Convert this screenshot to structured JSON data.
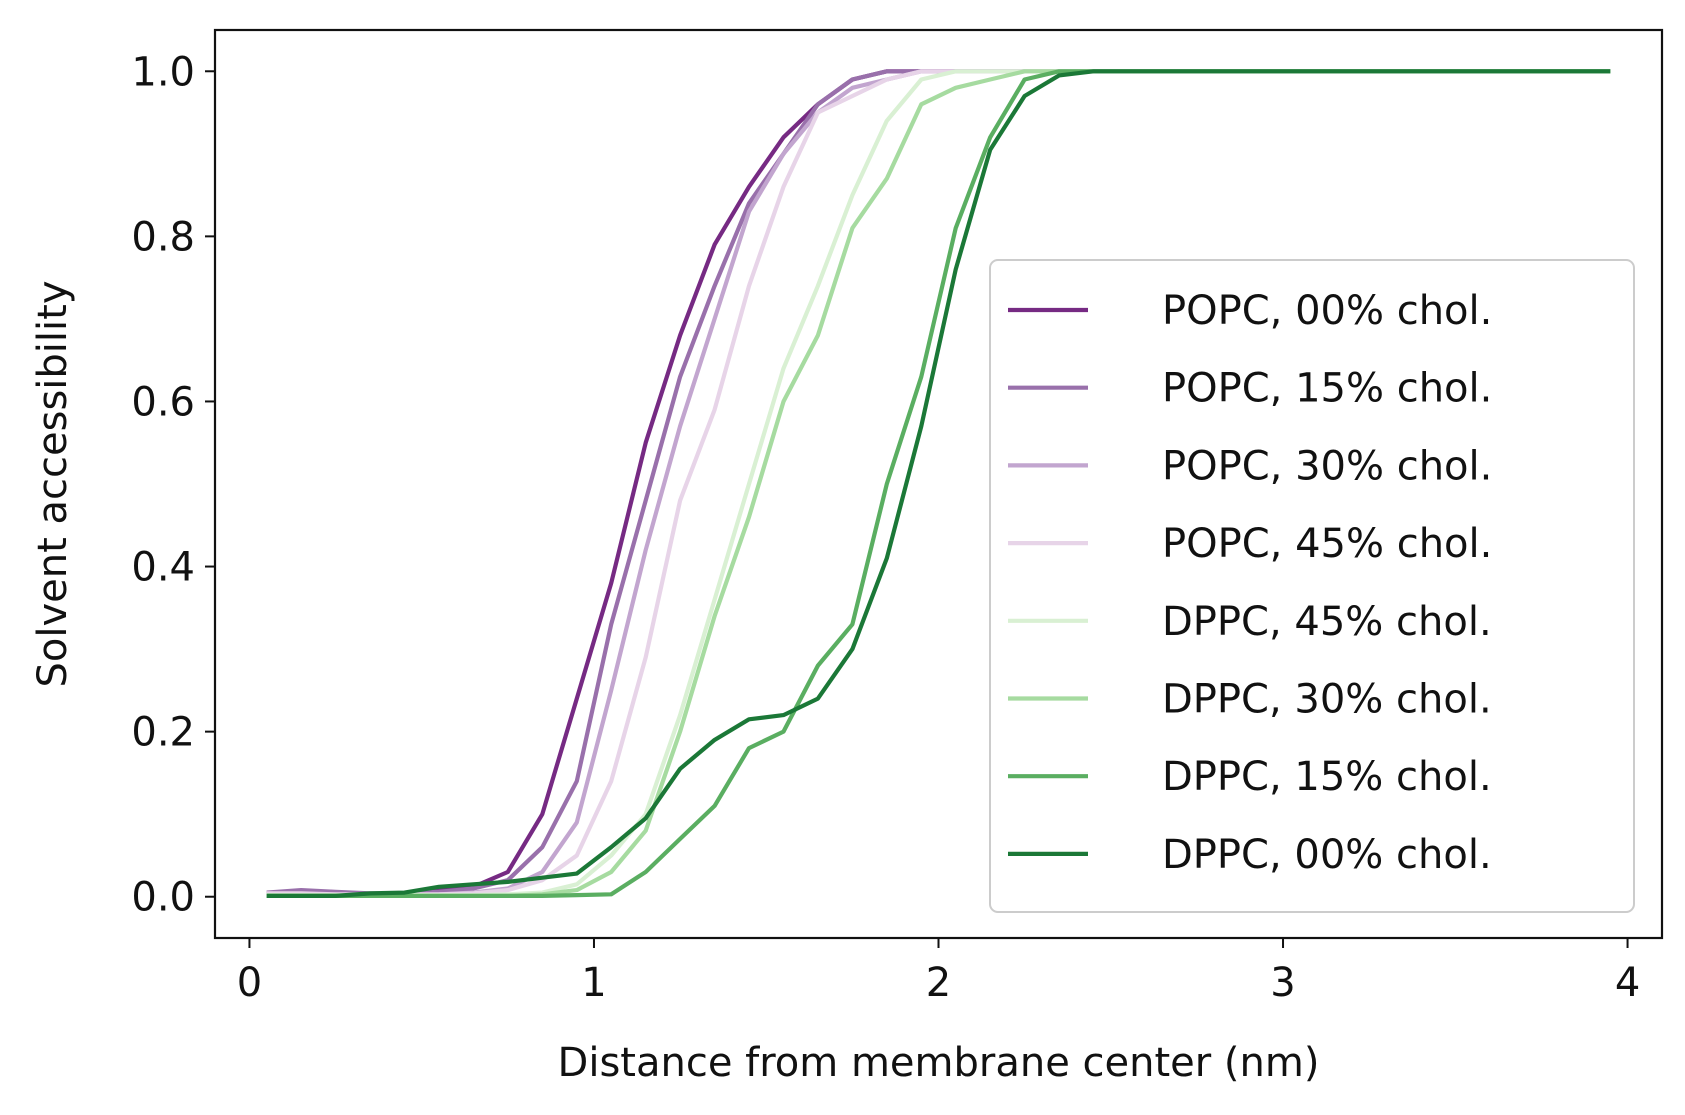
{
  "chart_data": {
    "type": "line",
    "title": "",
    "xlabel": "Distance from membrane center (nm)",
    "ylabel": "Solvent accessibility",
    "xlim": [
      -0.1,
      4.1
    ],
    "ylim": [
      -0.05,
      1.05
    ],
    "xticks": [
      0,
      1,
      2,
      3,
      4
    ],
    "xtick_labels": [
      "0",
      "1",
      "2",
      "3",
      "4"
    ],
    "yticks": [
      0.0,
      0.2,
      0.4,
      0.6,
      0.8,
      1.0
    ],
    "ytick_labels": [
      "0.0",
      "0.2",
      "0.4",
      "0.6",
      "0.8",
      "1.0"
    ],
    "grid": false,
    "legend_position": "center-right",
    "x": [
      0.05,
      0.15,
      0.25,
      0.35,
      0.45,
      0.55,
      0.65,
      0.75,
      0.85,
      0.95,
      1.05,
      1.15,
      1.25,
      1.35,
      1.45,
      1.55,
      1.65,
      1.75,
      1.85,
      1.95,
      2.05,
      2.15,
      2.25,
      2.35,
      2.45,
      2.55,
      2.65,
      2.75,
      2.85,
      2.95,
      3.05,
      3.15,
      3.25,
      3.35,
      3.45,
      3.55,
      3.65,
      3.75,
      3.85,
      3.95
    ],
    "series": [
      {
        "name": "POPC, 00% chol.",
        "color": "#762a83",
        "values": [
          0.003,
          0.003,
          0.003,
          0.003,
          0.004,
          0.008,
          0.012,
          0.03,
          0.1,
          0.24,
          0.38,
          0.55,
          0.68,
          0.79,
          0.86,
          0.92,
          0.96,
          0.99,
          1.0,
          1.0,
          1.0,
          1.0,
          1.0,
          1.0,
          1.0,
          1.0,
          1.0,
          1.0,
          1.0,
          1.0,
          1.0,
          1.0,
          1.0,
          1.0,
          1.0,
          1.0,
          1.0,
          1.0,
          1.0,
          1.0
        ]
      },
      {
        "name": "POPC, 15% chol.",
        "color": "#9970ab",
        "values": [
          0.005,
          0.008,
          0.006,
          0.004,
          0.004,
          0.006,
          0.01,
          0.02,
          0.06,
          0.14,
          0.33,
          0.48,
          0.63,
          0.74,
          0.84,
          0.9,
          0.96,
          0.99,
          1.0,
          1.0,
          1.0,
          1.0,
          1.0,
          1.0,
          1.0,
          1.0,
          1.0,
          1.0,
          1.0,
          1.0,
          1.0,
          1.0,
          1.0,
          1.0,
          1.0,
          1.0,
          1.0,
          1.0,
          1.0,
          1.0
        ]
      },
      {
        "name": "POPC, 30% chol.",
        "color": "#c2a5cf",
        "values": [
          0.002,
          0.002,
          0.002,
          0.002,
          0.002,
          0.003,
          0.005,
          0.01,
          0.03,
          0.09,
          0.25,
          0.42,
          0.57,
          0.7,
          0.83,
          0.9,
          0.95,
          0.98,
          0.99,
          1.0,
          1.0,
          1.0,
          1.0,
          1.0,
          1.0,
          1.0,
          1.0,
          1.0,
          1.0,
          1.0,
          1.0,
          1.0,
          1.0,
          1.0,
          1.0,
          1.0,
          1.0,
          1.0,
          1.0,
          1.0
        ]
      },
      {
        "name": "POPC, 45% chol.",
        "color": "#e7d4e8",
        "values": [
          0.004,
          0.004,
          0.003,
          0.003,
          0.003,
          0.003,
          0.004,
          0.008,
          0.02,
          0.05,
          0.14,
          0.29,
          0.48,
          0.59,
          0.74,
          0.86,
          0.95,
          0.97,
          0.99,
          1.0,
          1.0,
          1.0,
          1.0,
          1.0,
          1.0,
          1.0,
          1.0,
          1.0,
          1.0,
          1.0,
          1.0,
          1.0,
          1.0,
          1.0,
          1.0,
          1.0,
          1.0,
          1.0,
          1.0,
          1.0
        ]
      },
      {
        "name": "DPPC, 45% chol.",
        "color": "#d9f0d3",
        "values": [
          0.002,
          0.002,
          0.002,
          0.002,
          0.002,
          0.002,
          0.002,
          0.003,
          0.005,
          0.015,
          0.05,
          0.1,
          0.22,
          0.36,
          0.5,
          0.64,
          0.74,
          0.85,
          0.94,
          0.99,
          1.0,
          1.0,
          1.0,
          1.0,
          1.0,
          1.0,
          1.0,
          1.0,
          1.0,
          1.0,
          1.0,
          1.0,
          1.0,
          1.0,
          1.0,
          1.0,
          1.0,
          1.0,
          1.0,
          1.0
        ]
      },
      {
        "name": "DPPC, 30% chol.",
        "color": "#a6dba0",
        "values": [
          0.001,
          0.001,
          0.001,
          0.001,
          0.001,
          0.001,
          0.001,
          0.001,
          0.003,
          0.008,
          0.03,
          0.08,
          0.2,
          0.34,
          0.46,
          0.6,
          0.68,
          0.81,
          0.87,
          0.96,
          0.98,
          0.99,
          1.0,
          1.0,
          1.0,
          1.0,
          1.0,
          1.0,
          1.0,
          1.0,
          1.0,
          1.0,
          1.0,
          1.0,
          1.0,
          1.0,
          1.0,
          1.0,
          1.0,
          1.0
        ]
      },
      {
        "name": "DPPC, 15% chol.",
        "color": "#5aae61",
        "values": [
          0.001,
          0.001,
          0.001,
          0.001,
          0.001,
          0.001,
          0.001,
          0.001,
          0.001,
          0.002,
          0.003,
          0.03,
          0.07,
          0.11,
          0.18,
          0.2,
          0.28,
          0.33,
          0.5,
          0.63,
          0.81,
          0.92,
          0.99,
          1.0,
          1.0,
          1.0,
          1.0,
          1.0,
          1.0,
          1.0,
          1.0,
          1.0,
          1.0,
          1.0,
          1.0,
          1.0,
          1.0,
          1.0,
          1.0,
          1.0
        ]
      },
      {
        "name": "DPPC, 00% chol.",
        "color": "#1b7837",
        "values": [
          0.001,
          0.001,
          0.001,
          0.004,
          0.005,
          0.012,
          0.015,
          0.018,
          0.023,
          0.028,
          0.06,
          0.095,
          0.155,
          0.19,
          0.215,
          0.22,
          0.24,
          0.3,
          0.41,
          0.57,
          0.76,
          0.905,
          0.97,
          0.995,
          1.0,
          1.0,
          1.0,
          1.0,
          1.0,
          1.0,
          1.0,
          1.0,
          1.0,
          1.0,
          1.0,
          1.0,
          1.0,
          1.0,
          1.0,
          1.0
        ]
      }
    ]
  }
}
